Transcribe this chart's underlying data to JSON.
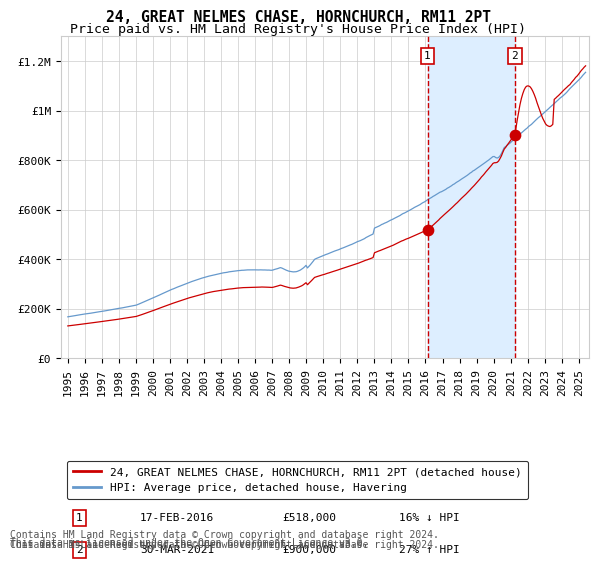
{
  "title": "24, GREAT NELMES CHASE, HORNCHURCH, RM11 2PT",
  "subtitle": "Price paid vs. HM Land Registry's House Price Index (HPI)",
  "ylim": [
    0,
    1300000
  ],
  "yticks": [
    0,
    200000,
    400000,
    600000,
    800000,
    1000000,
    1200000
  ],
  "ytick_labels": [
    "£0",
    "£200K",
    "£400K",
    "£600K",
    "£800K",
    "£1M",
    "£1.2M"
  ],
  "legend_line1": "24, GREAT NELMES CHASE, HORNCHURCH, RM11 2PT (detached house)",
  "legend_line2": "HPI: Average price, detached house, Havering",
  "transaction1_date": "17-FEB-2016",
  "transaction1_price": "£518,000",
  "transaction1_hpi": "16% ↓ HPI",
  "transaction1_year": 2016.12,
  "transaction1_value": 518000,
  "transaction2_date": "30-MAR-2021",
  "transaction2_price": "£900,000",
  "transaction2_hpi": "27% ↑ HPI",
  "transaction2_year": 2021.25,
  "transaction2_value": 900000,
  "line_color_red": "#cc0000",
  "line_color_blue": "#6699cc",
  "dot_color": "#cc0000",
  "shade_color": "#ddeeff",
  "vline_color": "#cc0000",
  "grid_color": "#cccccc",
  "bg_color": "#ffffff",
  "footnote_line1": "Contains HM Land Registry data © Crown copyright and database right 2024.",
  "footnote_line2": "This data is licensed under the Open Government Licence v3.0.",
  "title_fontsize": 10.5,
  "subtitle_fontsize": 9.5,
  "tick_fontsize": 8,
  "legend_fontsize": 8,
  "footnote_fontsize": 7
}
